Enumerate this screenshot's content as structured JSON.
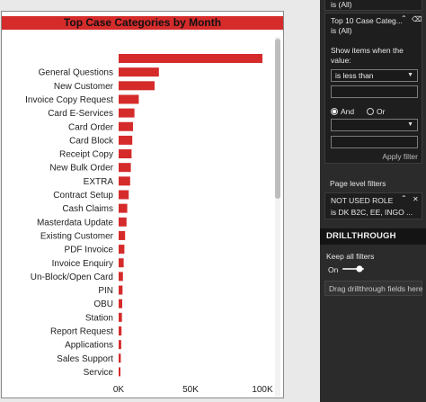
{
  "visual": {
    "title": "Top Case Categories by Month"
  },
  "chart_data": {
    "type": "bar",
    "orientation": "horizontal",
    "title": "Top Case Categories by Month",
    "categories": [
      "",
      "General Questions",
      "New Customer",
      "Invoice Copy Request",
      "Card E-Services",
      "Card Order",
      "Card Block",
      "Receipt Copy",
      "New Bulk Order",
      "EXTRA",
      "Contract Setup",
      "Cash Claims",
      "Masterdata Update",
      "Existing Customer",
      "PDF Invoice",
      "Invoice Enquiry",
      "Un-Block/Open Card",
      "PIN",
      "OBU",
      "Station",
      "Report Request",
      "Applications",
      "Sales Support",
      "Service"
    ],
    "values": [
      100000,
      28000,
      25000,
      14000,
      11000,
      10000,
      9500,
      9000,
      8500,
      8000,
      7000,
      6000,
      5500,
      4500,
      4000,
      3500,
      3000,
      2700,
      2500,
      2300,
      2000,
      1800,
      1500,
      1000
    ],
    "xticks": [
      "0K",
      "50K",
      "100K"
    ],
    "xtick_values": [
      0,
      50000,
      100000
    ],
    "xlim": [
      0,
      100000
    ],
    "bar_color": "#d52b2b",
    "grid": false
  },
  "filter_pane": {
    "filter0_value": "is (All)",
    "filter1_title": "Top 10 Case Categ...",
    "filter1_value": "is (All)",
    "show_items_label": "Show items when the value:",
    "condition1": "is less than",
    "logic_and": "And",
    "logic_or": "Or",
    "condition2": "",
    "apply_label": "Apply filter",
    "page_level_label": "Page level filters",
    "page_filter_title": "NOT USED ROLE",
    "page_filter_value": "is DK B2C, EE, INGO ...",
    "drillthrough_label": "DRILLTHROUGH",
    "keep_filters_label": "Keep all filters",
    "toggle_state": "On",
    "drag_hint": "Drag drillthrough fields here"
  }
}
